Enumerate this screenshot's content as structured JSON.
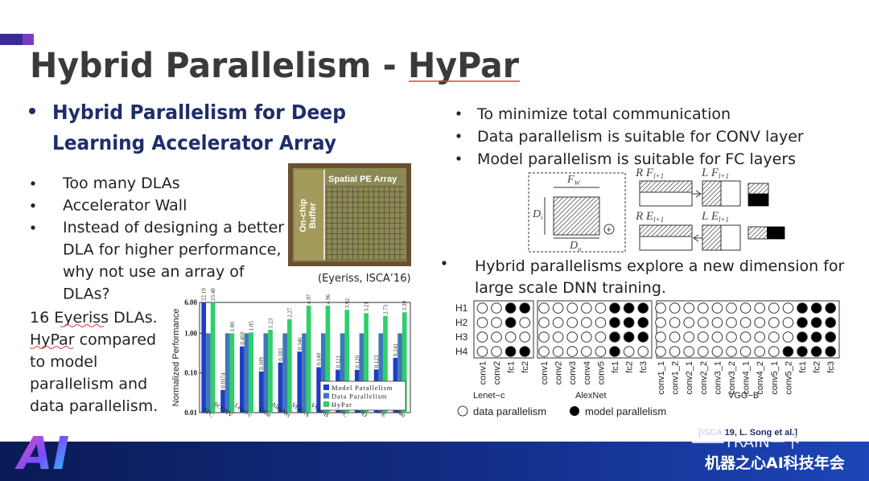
{
  "title": "Hybrid Parallelism - HyPar",
  "left": {
    "heading": [
      "Hybrid Parallelism for Deep",
      "Learning Accelerator Array"
    ],
    "bullets": [
      [
        "Too many DLAs"
      ],
      [
        "Accelerator Wall"
      ],
      [
        "Instead of designing a better",
        "DLA for higher performance,",
        "why not use an array of",
        "DLAs?"
      ]
    ],
    "note": [
      "16 Eyeriss DLAs.",
      "HyPar compared",
      "to model",
      "parallelism and",
      "data parallelism."
    ]
  },
  "photo": {
    "buffer_label": [
      "On-chip",
      "Buffer"
    ],
    "array_label": "Spatial PE Array",
    "caption": "(Eyeriss, ISCA’16)"
  },
  "chart_data": {
    "type": "bar",
    "y_label": "Normalized Performance",
    "categories": [
      "SFC",
      "SCONV",
      "Lenet-c",
      "Cifar",
      "AlexNet",
      "VGG-A",
      "VGG-B",
      "VGG-C",
      "VGG-D",
      "VGG-E",
      "Gmean"
    ],
    "series": [
      {
        "name": "Model Parallelism",
        "color": "#1c3fc8",
        "values": [
          22.19,
          0.0374,
          0.469,
          0.109,
          0.183,
          0.346,
          0.14,
          0.121,
          0.12,
          0.123,
          0.241
        ],
        "value_labels": [
          "22.19",
          "0.0374",
          "0.469",
          "0.109",
          "0.183",
          "0.346",
          "0.140",
          "0.121",
          "0.120",
          "0.123",
          "0.241"
        ]
      },
      {
        "name": "Data Parallelism",
        "color": "#3d78b8",
        "values": [
          1,
          1,
          1,
          1,
          1,
          1,
          1,
          1,
          1,
          1,
          1
        ]
      },
      {
        "name": "HyPar",
        "color": "#2fcf6a",
        "values": [
          23.48,
          1,
          1.05,
          1.23,
          2.27,
          4.97,
          4.96,
          3.92,
          3.21,
          2.73,
          3.39
        ],
        "value_labels": [
          "23.48",
          "1.00",
          "1.05",
          "1.23",
          "2.27",
          "4.97",
          "4.96",
          "3.92",
          "3.21",
          "2.73",
          "3.39"
        ]
      }
    ],
    "log_scale": true,
    "ylim": [
      0.01,
      6
    ],
    "yticks": [
      0.01,
      {
        "value": 0.1,
        "label": "0.10"
      },
      {
        "value": 1,
        "label": "1.00"
      },
      {
        "value": 6,
        "label": "6.00"
      }
    ],
    "legend": "lower-right"
  },
  "right": {
    "bullets": [
      "To minimize total communication",
      "Data parallelism is suitable for CONV layer",
      "Model parallelism is suitable for FC layers"
    ],
    "schematic": {
      "fw": {
        "text": "F",
        "sub": "W"
      },
      "di": {
        "text": "D",
        "sub": "i"
      },
      "do": {
        "text": "D",
        "sub": "o"
      },
      "rf": {
        "text": "R F",
        "sub": "l+1"
      },
      "lf": {
        "text": "L F",
        "sub": "l+1"
      },
      "re": {
        "text": "R E",
        "sub": "l+1"
      },
      "le": {
        "text": "L E",
        "sub": "l+1"
      }
    },
    "bullet2": [
      "Hybrid parallelisms explore a new dimension for",
      "large scale DNN training."
    ]
  },
  "dot_diagram": {
    "rows": [
      "H1",
      "H2",
      "H3",
      "H4"
    ],
    "networks": [
      {
        "name": "Lenet−c",
        "layers": [
          "conv1",
          "conv2",
          "fc1",
          "fc2"
        ]
      },
      {
        "name": "AlexNet",
        "layers": [
          "conv1",
          "conv2",
          "conv3",
          "conv4",
          "conv5",
          "fc1",
          "fc2",
          "fc3"
        ]
      },
      {
        "name": "VGG−B",
        "layers": [
          "conv1_1",
          "conv1_2",
          "conv2_1",
          "conv2_2",
          "conv3_1",
          "conv3_2",
          "conv4_1",
          "conv4_2",
          "conv5_1",
          "conv5_2",
          "fc1",
          "fc2",
          "fc3"
        ]
      }
    ],
    "legend": [
      "data parallelism",
      "model parallelism"
    ]
  },
  "citation": "[ISCA 19, L. Song et al.]",
  "watermark": [
    "TRAIN一下",
    "机器之心AI科技年会"
  ],
  "logo": "AI"
}
